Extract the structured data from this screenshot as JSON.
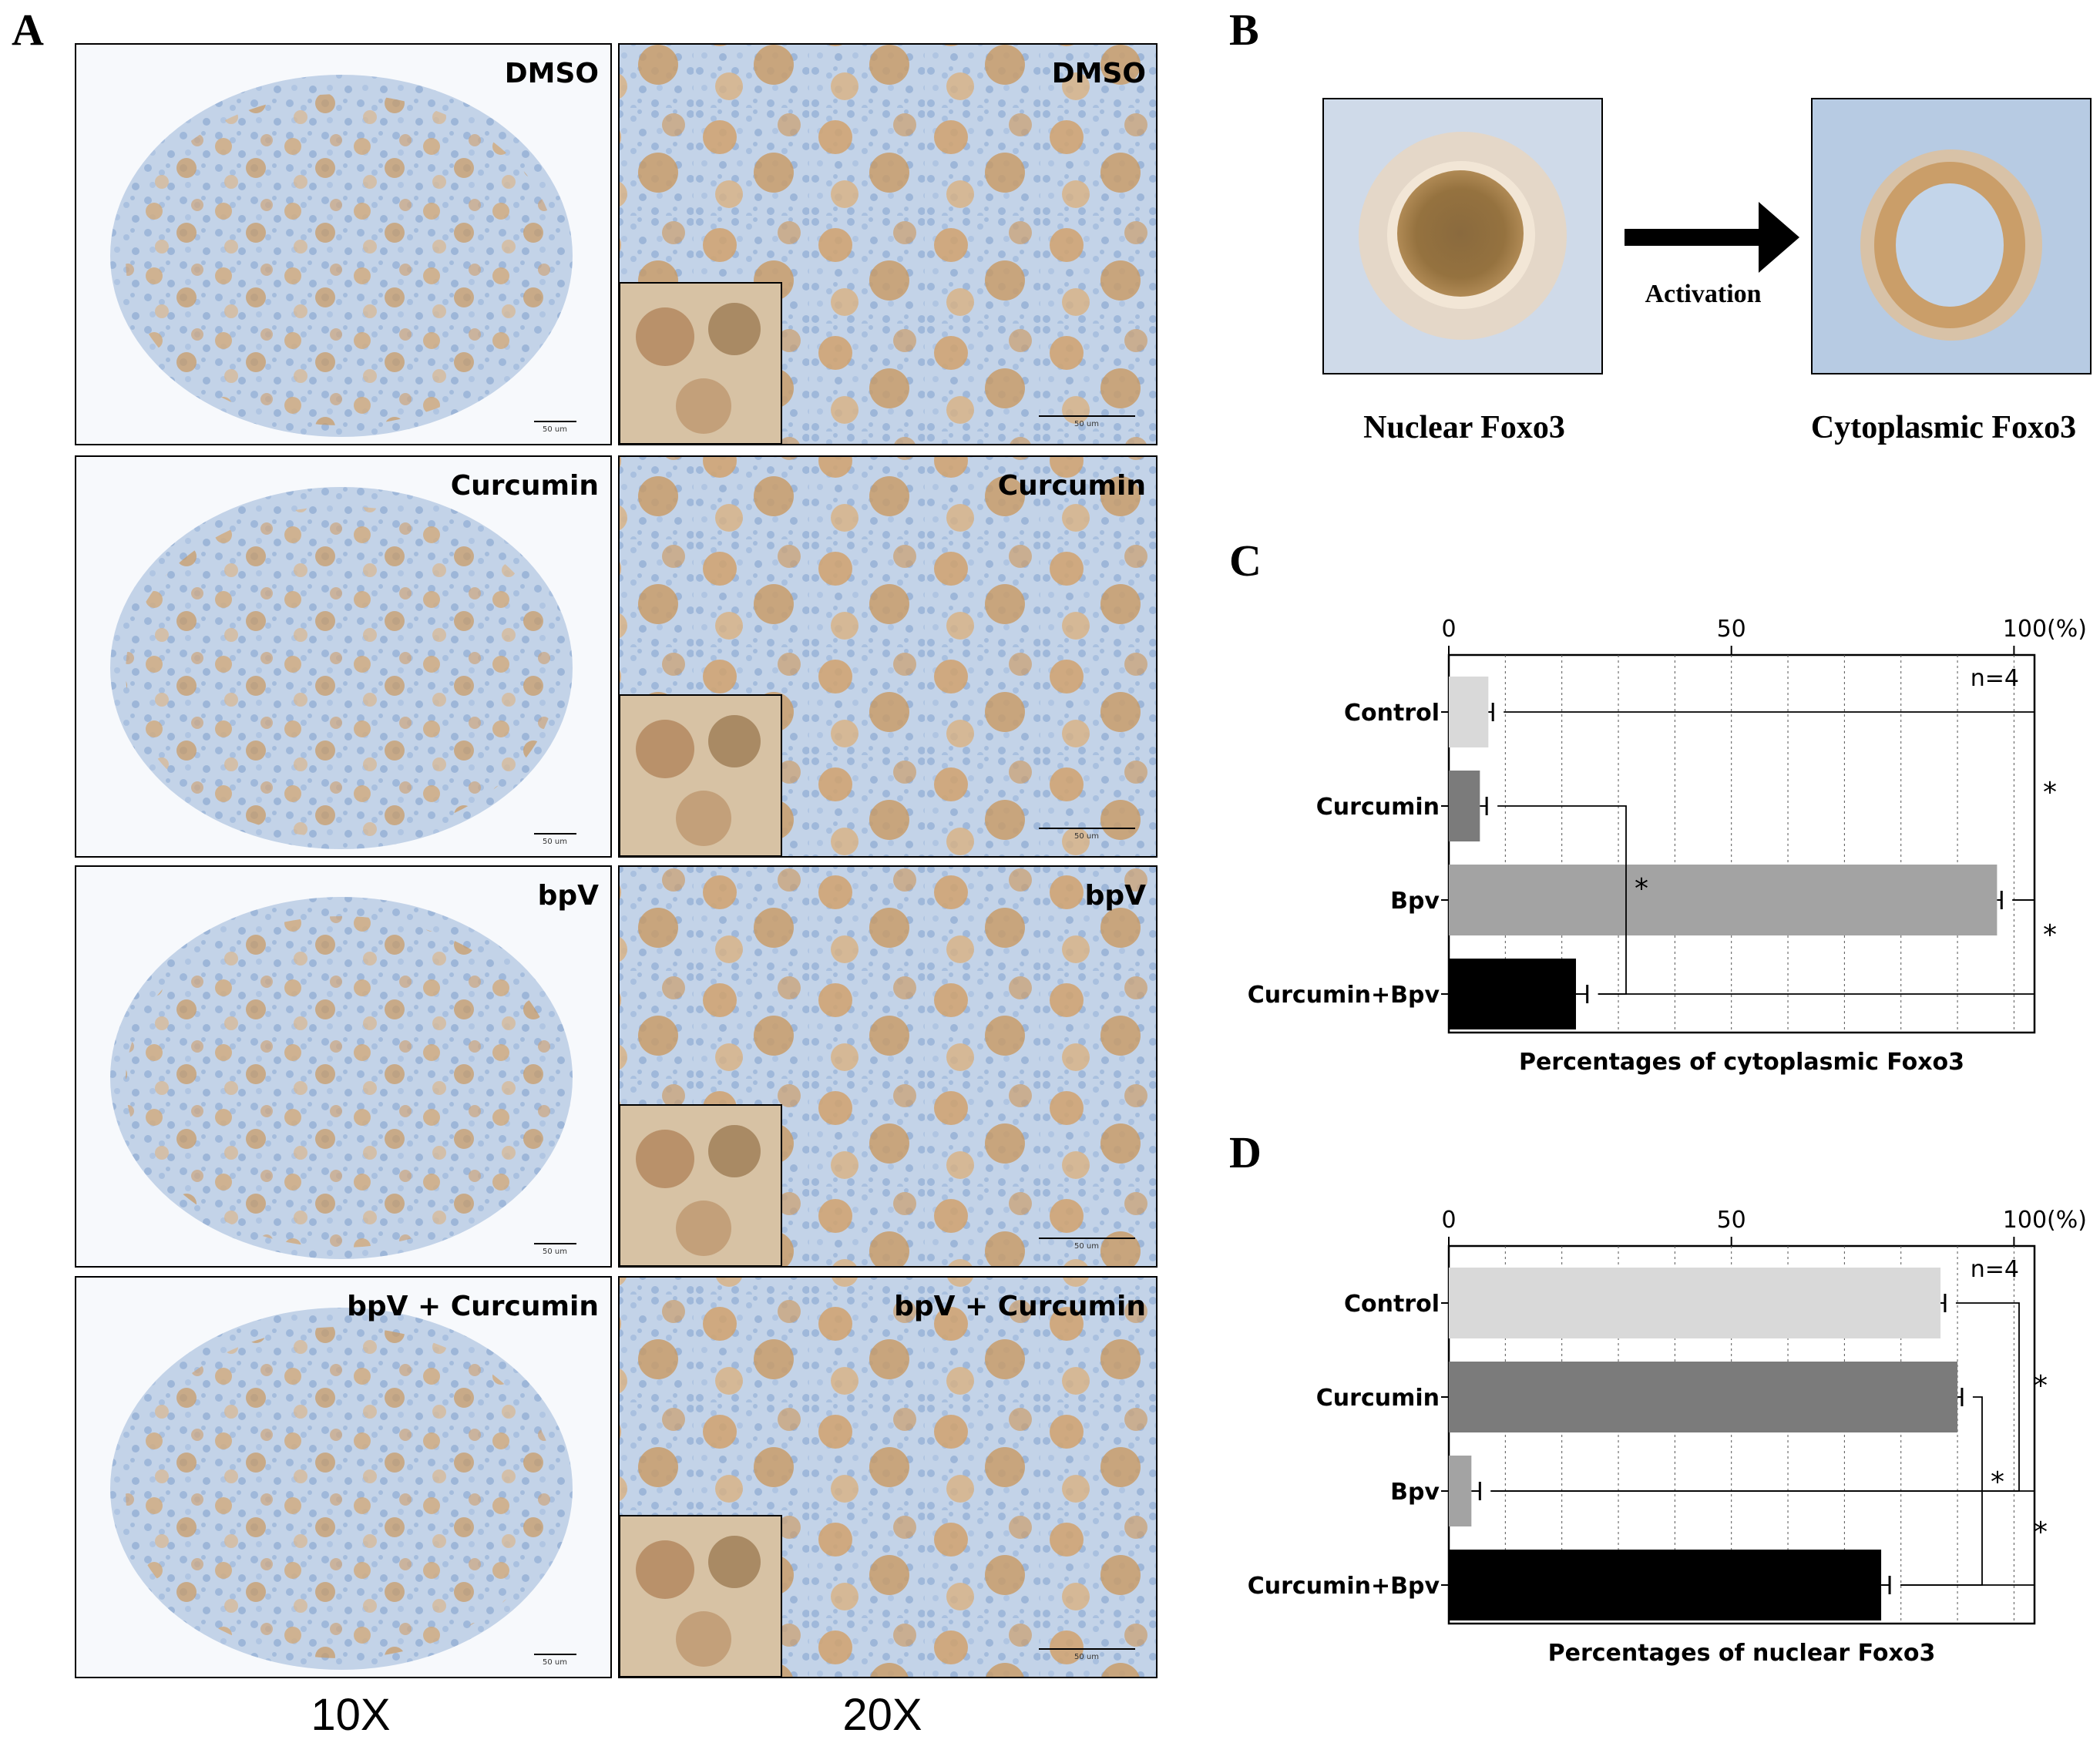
{
  "panels": {
    "A": {
      "letter": "A",
      "rows": [
        {
          "label": "DMSO",
          "scale": "50 um"
        },
        {
          "label": "Curcumin",
          "scale": "50 um"
        },
        {
          "label": "bpV",
          "scale": "50 um"
        },
        {
          "label": "bpV + Curcumin",
          "scale": "50 um"
        }
      ],
      "magnifications": [
        "10X",
        "20X"
      ]
    },
    "B": {
      "letter": "B",
      "left_caption": "Nuclear Foxo3",
      "right_caption": "Cytoplasmic Foxo3",
      "arrow_label": "Activation"
    },
    "C": {
      "letter": "C"
    },
    "D": {
      "letter": "D"
    }
  },
  "colors": {
    "tissue_blue": "#b9cde6",
    "cell_brown": "#c99a63",
    "bar_control": "#d9d9d9",
    "bar_curcumin": "#7b7b7b",
    "bar_bpv": "#a3a3a3",
    "bar_combo": "#000000"
  },
  "chart_data": [
    {
      "type": "bar",
      "orientation": "horizontal",
      "categories": [
        "Control",
        "Curcumin",
        "Bpv",
        "Curcumin+Bpv"
      ],
      "values": [
        7,
        5.5,
        97,
        22.5
      ],
      "errors": [
        0.8,
        1.2,
        0.8,
        2
      ],
      "xlim": [
        0,
        100
      ],
      "tick_labels": [
        "0",
        "50",
        "100(%)"
      ],
      "xlabel": "Percentages of cytoplasmic Foxo3",
      "annotation": "n=4",
      "grid": true,
      "significance": [
        "*",
        "*",
        "*"
      ]
    },
    {
      "type": "bar",
      "orientation": "horizontal",
      "categories": [
        "Control",
        "Curcumin",
        "Bpv",
        "Curcumin+Bpv"
      ],
      "values": [
        87,
        90,
        4,
        76.5
      ],
      "errors": [
        0.8,
        0.8,
        1.5,
        1.5
      ],
      "xlim": [
        0,
        100
      ],
      "tick_labels": [
        "0",
        "50",
        "100(%)"
      ],
      "xlabel": "Percentages of nuclear Foxo3",
      "annotation": "n=4",
      "grid": true,
      "significance": [
        "*",
        "*",
        "*"
      ]
    }
  ]
}
